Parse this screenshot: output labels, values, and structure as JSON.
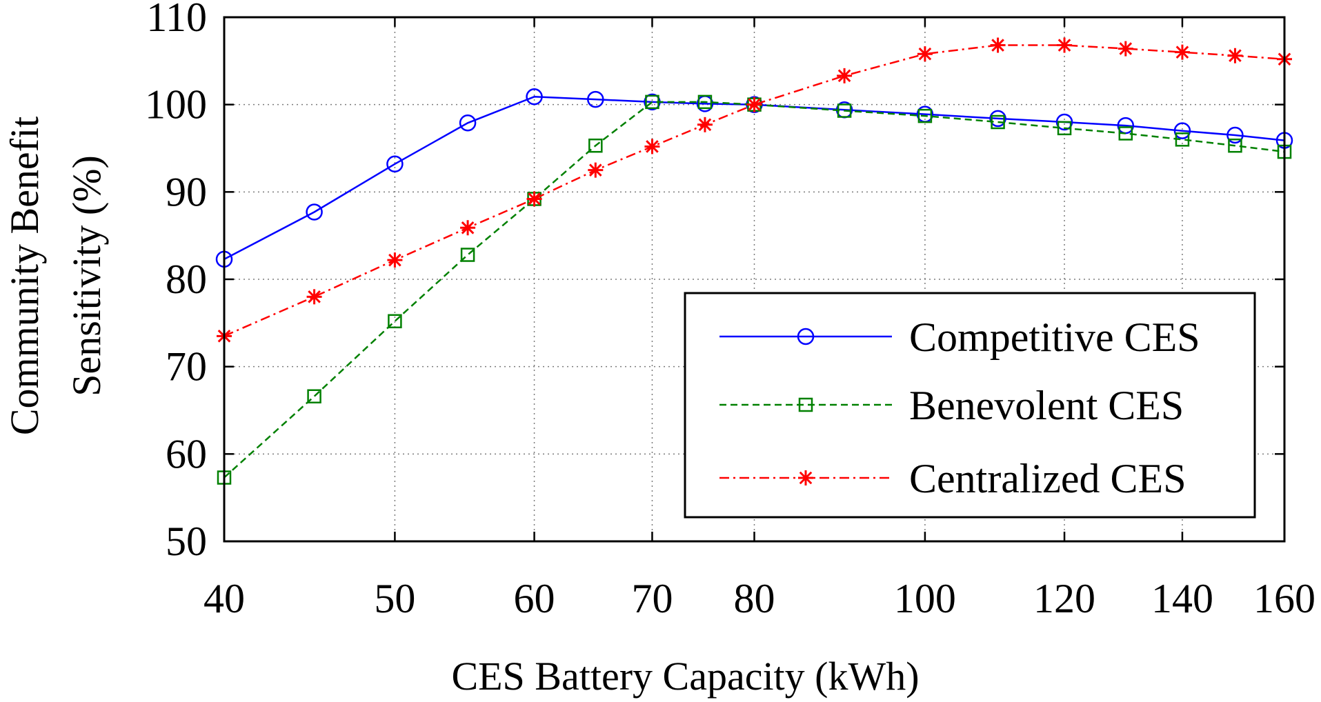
{
  "chart_data": {
    "type": "line",
    "title": "",
    "xlabel": "CES Battery Capacity  (kWh)",
    "ylabel": [
      "Community Benefit",
      "Sensitivity (%)"
    ],
    "x_scale": "log",
    "xlim": [
      40,
      160
    ],
    "ylim": [
      50,
      110
    ],
    "x_ticks": [
      40,
      50,
      60,
      70,
      80,
      100,
      120,
      140,
      160
    ],
    "x_tick_labels": [
      "40",
      "50",
      "60",
      "70",
      "80",
      "100",
      "120",
      "140",
      "160"
    ],
    "y_ticks": [
      50,
      60,
      70,
      80,
      90,
      100,
      110
    ],
    "y_tick_labels": [
      "50",
      "60",
      "70",
      "80",
      "90",
      "100",
      "110"
    ],
    "grid": true,
    "legend_position": "bottom-right",
    "x": [
      40,
      45,
      50,
      55,
      60,
      65,
      70,
      75,
      80,
      90,
      100,
      110,
      120,
      130,
      140,
      150,
      160
    ],
    "series": [
      {
        "name": "Competitive CES",
        "color": "#0000ff",
        "line_style": "solid",
        "marker": "circle",
        "values": [
          82.3,
          87.7,
          93.2,
          97.9,
          100.9,
          100.6,
          100.3,
          100.1,
          100.0,
          99.4,
          98.9,
          98.4,
          98.0,
          97.6,
          97.0,
          96.5,
          95.9
        ]
      },
      {
        "name": "Benevolent CES",
        "color": "#008000",
        "line_style": "dashed",
        "marker": "square",
        "values": [
          57.3,
          66.6,
          75.2,
          82.8,
          89.2,
          95.3,
          100.3,
          100.3,
          100.0,
          99.3,
          98.7,
          98.0,
          97.3,
          96.7,
          96.0,
          95.3,
          94.6
        ]
      },
      {
        "name": "Centralized CES",
        "color": "#ff0000",
        "line_style": "dash-dot",
        "marker": "asterisk",
        "values": [
          73.5,
          78.0,
          82.2,
          85.9,
          89.2,
          92.5,
          95.2,
          97.7,
          100.0,
          103.3,
          105.8,
          106.8,
          106.8,
          106.4,
          106.0,
          105.6,
          105.2
        ]
      }
    ]
  }
}
